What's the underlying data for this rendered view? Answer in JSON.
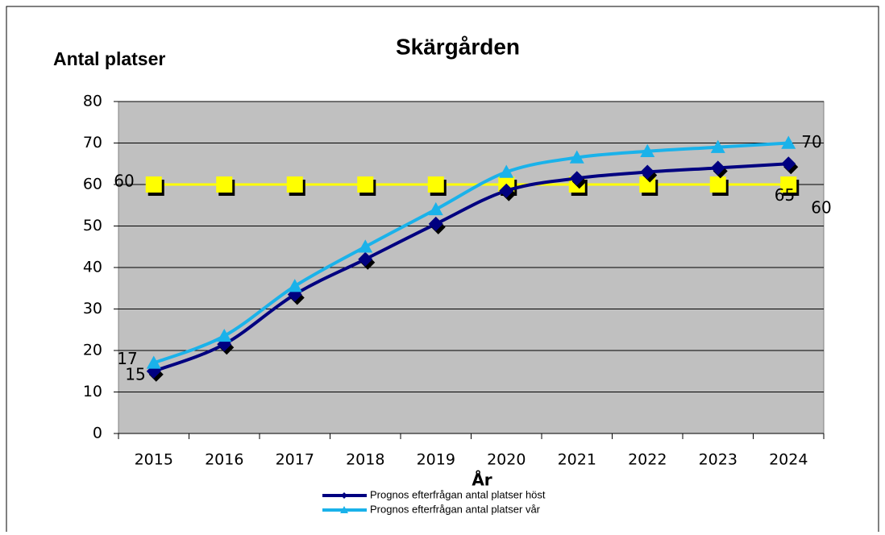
{
  "chart_data": {
    "type": "line",
    "title": "Skärgården",
    "y_label": "Antal platser",
    "x_label": "År",
    "categories": [
      "2015",
      "2016",
      "2017",
      "2018",
      "2019",
      "2020",
      "2021",
      "2022",
      "2023",
      "2024"
    ],
    "series": [
      {
        "name": "Prognos efterfrågan antal platser höst",
        "color": "#000080",
        "marker": "diamond",
        "values": [
          15,
          21.5,
          33.5,
          42,
          50.5,
          58.5,
          61.5,
          63,
          64,
          65
        ]
      },
      {
        "name": "Prognos efterfrågan antal platser vår",
        "color": "#1ab2ea",
        "marker": "triangle",
        "values": [
          17,
          23.5,
          35.5,
          45,
          54,
          63,
          66.5,
          68,
          69,
          70
        ]
      },
      {
        "color": "#ffff00",
        "marker": "square",
        "values": [
          60,
          60,
          60,
          60,
          60,
          60,
          60,
          60,
          60,
          60
        ]
      }
    ],
    "ylim": [
      0,
      80
    ],
    "yticks": [
      0,
      10,
      20,
      30,
      40,
      50,
      60,
      70,
      80
    ],
    "grid": true
  }
}
